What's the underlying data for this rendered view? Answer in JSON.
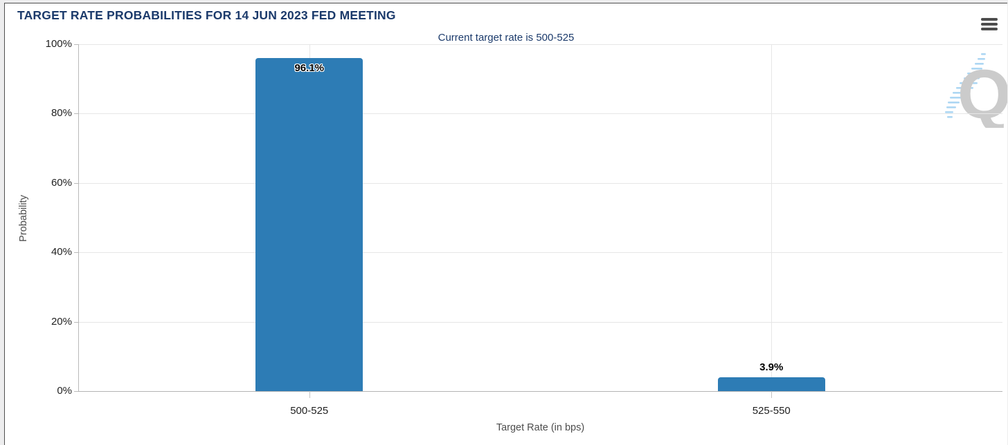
{
  "header": {
    "menu_icon": "hamburger-menu-icon"
  },
  "chart_data": {
    "type": "bar",
    "title": "TARGET RATE PROBABILITIES FOR 14 JUN 2023 FED MEETING",
    "subtitle": "Current target rate is 500-525",
    "categories": [
      "500-525",
      "525-550"
    ],
    "values": [
      96.1,
      3.9
    ],
    "value_labels": [
      "96.1%",
      "3.9%"
    ],
    "xlabel": "Target Rate (in bps)",
    "ylabel": "Probability",
    "ylim": [
      0,
      100
    ],
    "ytick_values": [
      0,
      20,
      40,
      60,
      80,
      100
    ],
    "ytick_labels": [
      "0%",
      "20%",
      "40%",
      "60%",
      "80%",
      "100%"
    ],
    "grid": true,
    "legend": "none",
    "bar_color": "#2d7cb5"
  },
  "watermark": {
    "letter": "Q",
    "q_color": "#c9c9c9",
    "dash_color": "#a9d5f3"
  },
  "colors": {
    "title_navy": "#1b3a6b",
    "bar_blue": "#2d7cb5",
    "gridline": "#e6e6e6",
    "axis_line": "#b3b3b3",
    "page_background": "#ededee",
    "card_background": "#ffffff"
  }
}
